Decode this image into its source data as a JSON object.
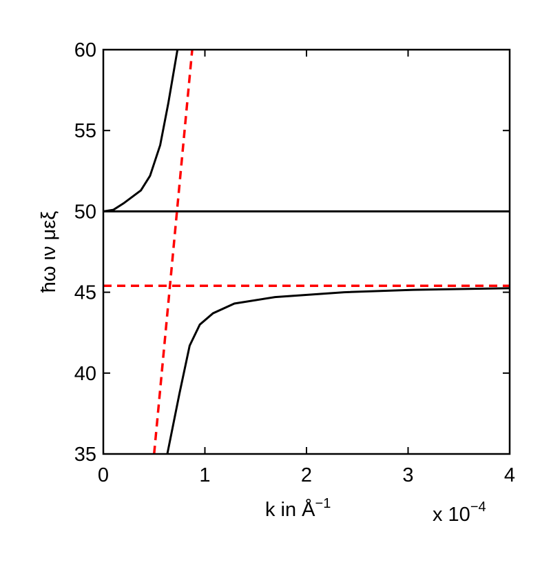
{
  "chart_data": {
    "type": "line",
    "y_label": "ħω ιν μεξ",
    "x_label": {
      "text": "k in Å",
      "superscript": "−1"
    },
    "x_multiplier": {
      "text": "x 10",
      "superscript": "−4"
    },
    "xlim": [
      0,
      4
    ],
    "xticks": [
      0,
      1,
      2,
      3,
      4
    ],
    "ylim": [
      35,
      60
    ],
    "yticks": [
      35,
      40,
      45,
      50,
      55,
      60
    ],
    "series": [
      {
        "color": "#000000",
        "style": "solid",
        "x": [
          0,
          0.1,
          0.2,
          0.37,
          0.46,
          0.56,
          0.64,
          0.73
        ],
        "values": [
          50,
          50.1,
          50.5,
          51.3,
          52.2,
          54.1,
          56.7,
          60
        ]
      },
      {
        "color": "#000000",
        "style": "solid",
        "x": [
          0.63,
          0.75,
          0.85,
          0.95,
          1.08,
          1.29,
          1.69,
          2.37,
          3.05,
          4
        ],
        "values": [
          35,
          38.75,
          41.7,
          43.0,
          43.7,
          44.3,
          44.7,
          45.0,
          45.15,
          45.25
        ]
      },
      {
        "color": "#000000",
        "style": "solid",
        "x": [
          0,
          4
        ],
        "values": [
          50,
          50
        ]
      },
      {
        "color": "#ff0000",
        "style": "dashed",
        "x": [
          0,
          4
        ],
        "values": [
          45.4,
          45.4
        ]
      },
      {
        "color": "#ff0000",
        "style": "dashed",
        "x": [
          0.5,
          0.875
        ],
        "values": [
          35,
          60
        ]
      }
    ]
  }
}
